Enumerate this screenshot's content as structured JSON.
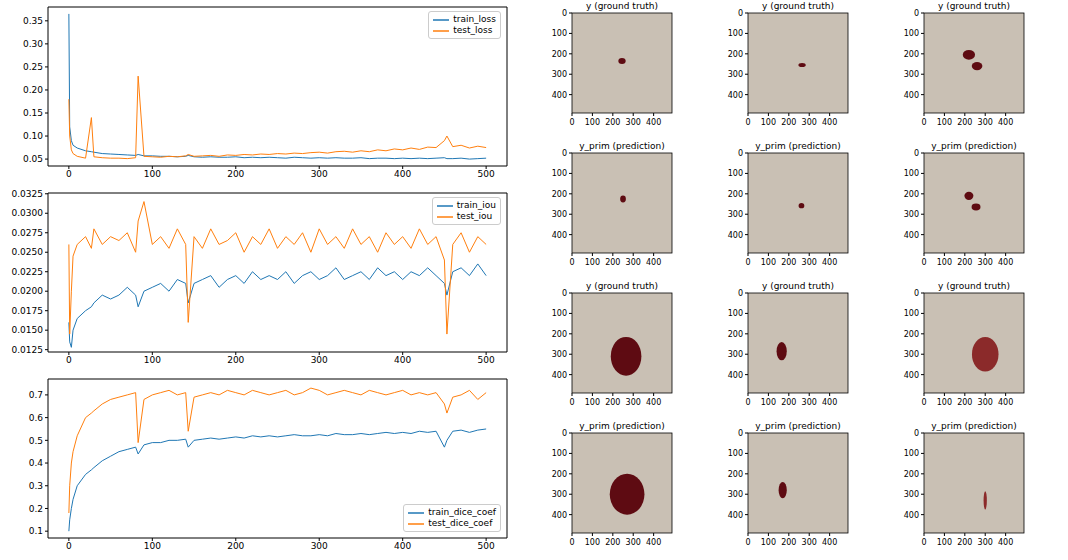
{
  "chart_data": [
    {
      "type": "line",
      "x": [
        0,
        1,
        3,
        5,
        10,
        20,
        27,
        30,
        40,
        50,
        60,
        70,
        80,
        83,
        90,
        100,
        110,
        120,
        130,
        140,
        143,
        150,
        160,
        170,
        180,
        190,
        200,
        210,
        220,
        230,
        240,
        250,
        260,
        270,
        280,
        290,
        300,
        310,
        320,
        330,
        340,
        350,
        360,
        370,
        380,
        390,
        400,
        410,
        420,
        430,
        440,
        450,
        453,
        460,
        470,
        480,
        490,
        500
      ],
      "xlim": [
        -25,
        525
      ],
      "xticks": [
        0,
        100,
        200,
        300,
        400,
        500
      ],
      "ylim": [
        0.035,
        0.38
      ],
      "yticks": [
        0.05,
        {
          "value": 0.1,
          "label": "0.10"
        },
        0.15,
        {
          "value": 0.2,
          "label": "0.20"
        },
        0.25,
        {
          "value": 0.3,
          "label": "0.30"
        },
        0.35
      ],
      "legend": "upper right",
      "series": [
        {
          "name": "train_loss",
          "color": "#1f77b4",
          "values": [
            0.365,
            0.12,
            0.09,
            0.08,
            0.074,
            0.068,
            0.066,
            0.065,
            0.062,
            0.061,
            0.06,
            0.059,
            0.058,
            0.06,
            0.057,
            0.057,
            0.056,
            0.056,
            0.055,
            0.056,
            0.058,
            0.055,
            0.054,
            0.055,
            0.054,
            0.054,
            0.055,
            0.053,
            0.054,
            0.053,
            0.054,
            0.053,
            0.052,
            0.054,
            0.053,
            0.052,
            0.053,
            0.052,
            0.053,
            0.052,
            0.052,
            0.053,
            0.051,
            0.052,
            0.052,
            0.051,
            0.052,
            0.051,
            0.052,
            0.051,
            0.052,
            0.053,
            0.051,
            0.051,
            0.052,
            0.05,
            0.051,
            0.052
          ]
        },
        {
          "name": "test_loss",
          "color": "#ff7f0e",
          "values": [
            0.18,
            0.1,
            0.07,
            0.062,
            0.056,
            0.052,
            0.14,
            0.055,
            0.053,
            0.052,
            0.052,
            0.051,
            0.053,
            0.23,
            0.056,
            0.055,
            0.054,
            0.056,
            0.055,
            0.057,
            0.06,
            0.056,
            0.057,
            0.058,
            0.056,
            0.059,
            0.058,
            0.06,
            0.059,
            0.061,
            0.06,
            0.062,
            0.061,
            0.063,
            0.062,
            0.064,
            0.065,
            0.063,
            0.066,
            0.067,
            0.065,
            0.068,
            0.066,
            0.07,
            0.068,
            0.072,
            0.07,
            0.074,
            0.071,
            0.076,
            0.075,
            0.09,
            0.1,
            0.077,
            0.08,
            0.074,
            0.078,
            0.075
          ]
        }
      ]
    },
    {
      "type": "line",
      "x": [
        0,
        1,
        3,
        5,
        10,
        20,
        27,
        30,
        40,
        50,
        60,
        70,
        80,
        83,
        90,
        100,
        110,
        120,
        130,
        140,
        143,
        150,
        160,
        170,
        180,
        190,
        200,
        210,
        220,
        230,
        240,
        250,
        260,
        270,
        280,
        290,
        300,
        310,
        320,
        330,
        340,
        350,
        360,
        370,
        380,
        390,
        400,
        410,
        420,
        430,
        440,
        450,
        453,
        460,
        470,
        480,
        490,
        500
      ],
      "xlim": [
        -25,
        525
      ],
      "xticks": [
        0,
        100,
        200,
        300,
        400,
        500
      ],
      "ylim": [
        0.0122,
        0.0326
      ],
      "yticks": [
        0.0125,
        {
          "value": 0.015,
          "label": "0.0150"
        },
        0.0175,
        {
          "value": 0.02,
          "label": "0.0200"
        },
        0.0225,
        {
          "value": 0.025,
          "label": "0.0250"
        },
        0.0275,
        {
          "value": 0.03,
          "label": "0.0300"
        },
        0.0325
      ],
      "legend": "upper right",
      "series": [
        {
          "name": "train_iou",
          "color": "#1f77b4",
          "values": [
            0.016,
            0.0135,
            0.0128,
            0.015,
            0.0165,
            0.0175,
            0.018,
            0.0185,
            0.0195,
            0.019,
            0.0195,
            0.0205,
            0.0195,
            0.018,
            0.02,
            0.0205,
            0.021,
            0.02,
            0.0215,
            0.021,
            0.0185,
            0.021,
            0.0215,
            0.022,
            0.0205,
            0.0215,
            0.022,
            0.021,
            0.0225,
            0.0215,
            0.022,
            0.0215,
            0.0225,
            0.021,
            0.022,
            0.0225,
            0.0215,
            0.022,
            0.023,
            0.0215,
            0.022,
            0.0225,
            0.0215,
            0.023,
            0.022,
            0.0225,
            0.0215,
            0.0225,
            0.022,
            0.023,
            0.022,
            0.021,
            0.0195,
            0.0225,
            0.023,
            0.022,
            0.0235,
            0.022
          ]
        },
        {
          "name": "test_iou",
          "color": "#ff7f0e",
          "values": [
            0.026,
            0.0145,
            0.02,
            0.0245,
            0.026,
            0.027,
            0.0255,
            0.028,
            0.026,
            0.027,
            0.0265,
            0.0275,
            0.025,
            0.029,
            0.0315,
            0.026,
            0.027,
            0.0255,
            0.028,
            0.026,
            0.016,
            0.027,
            0.0255,
            0.028,
            0.026,
            0.0265,
            0.0275,
            0.025,
            0.027,
            0.026,
            0.028,
            0.0255,
            0.027,
            0.026,
            0.0275,
            0.025,
            0.028,
            0.026,
            0.027,
            0.0255,
            0.028,
            0.026,
            0.027,
            0.025,
            0.0275,
            0.026,
            0.027,
            0.0255,
            0.028,
            0.026,
            0.027,
            0.024,
            0.0145,
            0.026,
            0.0275,
            0.025,
            0.027,
            0.026
          ]
        }
      ]
    },
    {
      "type": "line",
      "x": [
        0,
        1,
        3,
        5,
        10,
        20,
        27,
        30,
        40,
        50,
        60,
        70,
        80,
        83,
        90,
        100,
        110,
        120,
        130,
        140,
        143,
        150,
        160,
        170,
        180,
        190,
        200,
        210,
        220,
        230,
        240,
        250,
        260,
        270,
        280,
        290,
        300,
        310,
        320,
        330,
        340,
        350,
        360,
        370,
        380,
        390,
        400,
        410,
        420,
        430,
        440,
        450,
        453,
        460,
        470,
        480,
        490,
        500
      ],
      "xlim": [
        -25,
        525
      ],
      "xticks": [
        0,
        100,
        200,
        300,
        400,
        500
      ],
      "ylim": [
        0.07,
        0.77
      ],
      "yticks": [
        0.1,
        0.2,
        0.3,
        0.4,
        0.5,
        0.6,
        0.7
      ],
      "legend": "lower right",
      "series": [
        {
          "name": "train_dice_coef",
          "color": "#1f77b4",
          "values": [
            0.1,
            0.15,
            0.2,
            0.24,
            0.3,
            0.35,
            0.37,
            0.38,
            0.41,
            0.43,
            0.45,
            0.46,
            0.47,
            0.44,
            0.48,
            0.49,
            0.49,
            0.5,
            0.5,
            0.505,
            0.47,
            0.5,
            0.505,
            0.51,
            0.505,
            0.51,
            0.515,
            0.51,
            0.52,
            0.515,
            0.52,
            0.515,
            0.52,
            0.525,
            0.52,
            0.52,
            0.525,
            0.52,
            0.53,
            0.525,
            0.525,
            0.53,
            0.525,
            0.53,
            0.535,
            0.53,
            0.535,
            0.53,
            0.54,
            0.535,
            0.54,
            0.47,
            0.5,
            0.54,
            0.545,
            0.535,
            0.545,
            0.55
          ]
        },
        {
          "name": "test_dice_coef",
          "color": "#ff7f0e",
          "values": [
            0.18,
            0.3,
            0.4,
            0.45,
            0.52,
            0.6,
            0.62,
            0.63,
            0.66,
            0.68,
            0.69,
            0.7,
            0.71,
            0.49,
            0.68,
            0.7,
            0.71,
            0.72,
            0.7,
            0.71,
            0.54,
            0.69,
            0.7,
            0.71,
            0.7,
            0.72,
            0.71,
            0.7,
            0.72,
            0.71,
            0.7,
            0.71,
            0.72,
            0.7,
            0.71,
            0.73,
            0.72,
            0.7,
            0.71,
            0.72,
            0.71,
            0.7,
            0.72,
            0.71,
            0.7,
            0.71,
            0.72,
            0.7,
            0.71,
            0.7,
            0.71,
            0.66,
            0.62,
            0.69,
            0.7,
            0.72,
            0.68,
            0.71
          ]
        }
      ]
    },
    {
      "type": "image",
      "title": "y (ground truth)",
      "xlim": [
        0,
        490
      ],
      "ylim": [
        490,
        0
      ],
      "xticks": [
        0,
        100,
        200,
        300,
        400
      ],
      "yticks": [
        0,
        100,
        200,
        300,
        400
      ],
      "color": "#5e0b12",
      "spots": [
        {
          "x": 245,
          "y": 235,
          "rx": 18,
          "ry": 15
        }
      ]
    },
    {
      "type": "image",
      "title": "y (ground truth)",
      "xlim": [
        0,
        490
      ],
      "ylim": [
        490,
        0
      ],
      "xticks": [
        0,
        100,
        200,
        300,
        400
      ],
      "yticks": [
        0,
        100,
        200,
        300,
        400
      ],
      "color": "#5e0b12",
      "spots": [
        {
          "x": 265,
          "y": 255,
          "rx": 18,
          "ry": 10
        }
      ]
    },
    {
      "type": "image",
      "title": "y (ground truth)",
      "xlim": [
        0,
        490
      ],
      "ylim": [
        490,
        0
      ],
      "xticks": [
        0,
        100,
        200,
        300,
        400
      ],
      "yticks": [
        0,
        100,
        200,
        300,
        400
      ],
      "color": "#5e0b12",
      "spots": [
        {
          "x": 220,
          "y": 205,
          "rx": 30,
          "ry": 24
        },
        {
          "x": 260,
          "y": 260,
          "rx": 26,
          "ry": 20
        }
      ]
    },
    {
      "type": "image",
      "title": "y_prim (prediction)",
      "xlim": [
        0,
        490
      ],
      "ylim": [
        490,
        0
      ],
      "xticks": [
        0,
        100,
        200,
        300,
        400
      ],
      "yticks": [
        0,
        100,
        200,
        300,
        400
      ],
      "color": "#5e0b12",
      "spots": [
        {
          "x": 250,
          "y": 225,
          "rx": 14,
          "ry": 17
        }
      ]
    },
    {
      "type": "image",
      "title": "y_prim (prediction)",
      "xlim": [
        0,
        490
      ],
      "ylim": [
        490,
        0
      ],
      "xticks": [
        0,
        100,
        200,
        300,
        400
      ],
      "yticks": [
        0,
        100,
        200,
        300,
        400
      ],
      "color": "#5e0b12",
      "spots": [
        {
          "x": 262,
          "y": 258,
          "rx": 14,
          "ry": 13
        }
      ]
    },
    {
      "type": "image",
      "title": "y_prim (prediction)",
      "xlim": [
        0,
        490
      ],
      "ylim": [
        490,
        0
      ],
      "xticks": [
        0,
        100,
        200,
        300,
        400
      ],
      "yticks": [
        0,
        100,
        200,
        300,
        400
      ],
      "color": "#5e0b12",
      "spots": [
        {
          "x": 220,
          "y": 210,
          "rx": 22,
          "ry": 20
        },
        {
          "x": 255,
          "y": 265,
          "rx": 22,
          "ry": 17
        }
      ]
    },
    {
      "type": "image",
      "title": "y (ground truth)",
      "xlim": [
        0,
        490
      ],
      "ylim": [
        490,
        0
      ],
      "xticks": [
        0,
        100,
        200,
        300,
        400
      ],
      "yticks": [
        0,
        100,
        200,
        300,
        400
      ],
      "color": "#5e0b12",
      "spots": [
        {
          "x": 265,
          "y": 310,
          "rx": 75,
          "ry": 95
        }
      ]
    },
    {
      "type": "image",
      "title": "y (ground truth)",
      "xlim": [
        0,
        490
      ],
      "ylim": [
        490,
        0
      ],
      "xticks": [
        0,
        100,
        200,
        300,
        400
      ],
      "yticks": [
        0,
        100,
        200,
        300,
        400
      ],
      "color": "#5e0b12",
      "spots": [
        {
          "x": 165,
          "y": 285,
          "rx": 25,
          "ry": 45
        }
      ]
    },
    {
      "type": "image",
      "title": "y (ground truth)",
      "xlim": [
        0,
        490
      ],
      "ylim": [
        490,
        0
      ],
      "xticks": [
        0,
        100,
        200,
        300,
        400
      ],
      "yticks": [
        0,
        100,
        200,
        300,
        400
      ],
      "color": "#8b2a2a",
      "spots": [
        {
          "x": 300,
          "y": 300,
          "rx": 65,
          "ry": 85
        }
      ]
    },
    {
      "type": "image",
      "title": "y_prim (prediction)",
      "xlim": [
        0,
        490
      ],
      "ylim": [
        490,
        0
      ],
      "xticks": [
        0,
        100,
        200,
        300,
        400
      ],
      "yticks": [
        0,
        100,
        200,
        300,
        400
      ],
      "color": "#5e0b12",
      "spots": [
        {
          "x": 270,
          "y": 300,
          "rx": 85,
          "ry": 100
        }
      ]
    },
    {
      "type": "image",
      "title": "y_prim (prediction)",
      "xlim": [
        0,
        490
      ],
      "ylim": [
        490,
        0
      ],
      "xticks": [
        0,
        100,
        200,
        300,
        400
      ],
      "yticks": [
        0,
        100,
        200,
        300,
        400
      ],
      "color": "#5e0b12",
      "spots": [
        {
          "x": 170,
          "y": 280,
          "rx": 20,
          "ry": 40
        }
      ]
    },
    {
      "type": "image",
      "title": "y_prim (prediction)",
      "xlim": [
        0,
        490
      ],
      "ylim": [
        490,
        0
      ],
      "xticks": [
        0,
        100,
        200,
        300,
        400
      ],
      "yticks": [
        0,
        100,
        200,
        300,
        400
      ],
      "color": "#8b2a2a",
      "spots": [
        {
          "x": 300,
          "y": 330,
          "rx": 8,
          "ry": 45
        }
      ]
    }
  ]
}
